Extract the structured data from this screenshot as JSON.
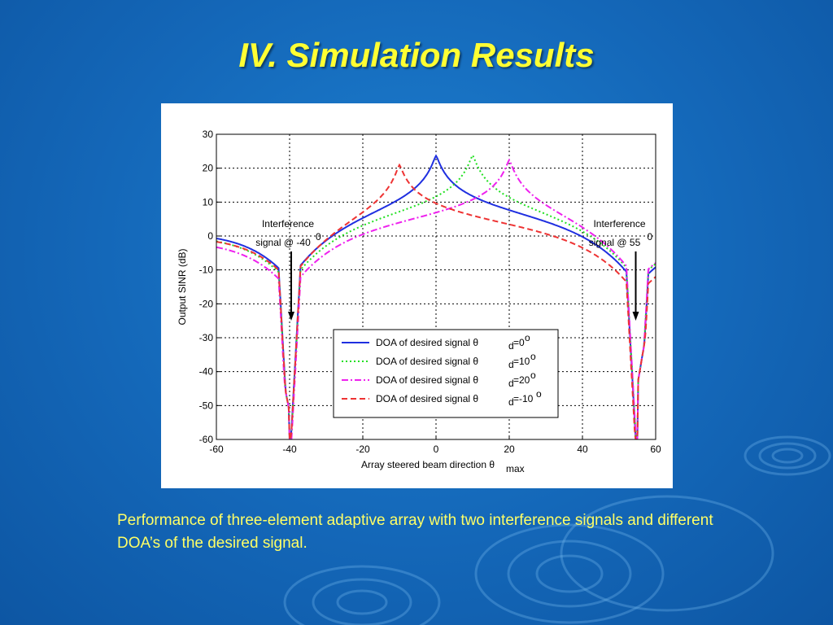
{
  "slide": {
    "title": "IV. Simulation Results",
    "caption": "Performance of three-element adaptive array with two interference signals and different DOA’s of the desired signal."
  },
  "colors": {
    "background": "#1467b8",
    "title": "#ffff33",
    "caption": "#ffff66"
  },
  "chart_data": {
    "type": "line",
    "xlabel": "Array steered beam direction θ",
    "xlabel_sub": "max",
    "ylabel": "Output SINR (dB)",
    "xlim": [
      -60,
      60
    ],
    "ylim": [
      -60,
      30
    ],
    "xticks": [
      -60,
      -40,
      -20,
      0,
      20,
      40,
      60
    ],
    "yticks": [
      30,
      20,
      10,
      0,
      -10,
      -20,
      -30,
      -40,
      -50,
      -60
    ],
    "grid": true,
    "legend_position": "bottom-right",
    "annotations": [
      {
        "line1": "Interference",
        "line2": "signal @ -40",
        "sup": "0",
        "arrow_x": -40
      },
      {
        "line1": "Interference",
        "line2": "signal @ 55",
        "sup": "0",
        "arrow_x": 55
      }
    ],
    "series": [
      {
        "label_main": "DOA of desired signal θ",
        "label_sub": "d",
        "label_value": "=0",
        "label_sup": "o",
        "color": "#1f2fe0",
        "dash": "solid",
        "peak": 0,
        "peak_value": 24.5
      },
      {
        "label_main": "DOA of desired signal θ",
        "label_sub": "d",
        "label_value": "=10",
        "label_sup": "o",
        "color": "#22e022",
        "dash": "dotted",
        "peak": 10,
        "peak_value": 24.5
      },
      {
        "label_main": "DOA of desired signal θ",
        "label_sub": "d",
        "label_value": "=20",
        "label_sup": "o",
        "color": "#ee22ee",
        "dash": "dashdot",
        "peak": 20,
        "peak_value": 23.5
      },
      {
        "label_main": "DOA of desired signal θ",
        "label_sub": "d",
        "label_value": "=-10",
        "label_sup": "o",
        "color": "#ee3333",
        "dash": "dashed",
        "peak": -10,
        "peak_value": 22.5
      }
    ]
  }
}
